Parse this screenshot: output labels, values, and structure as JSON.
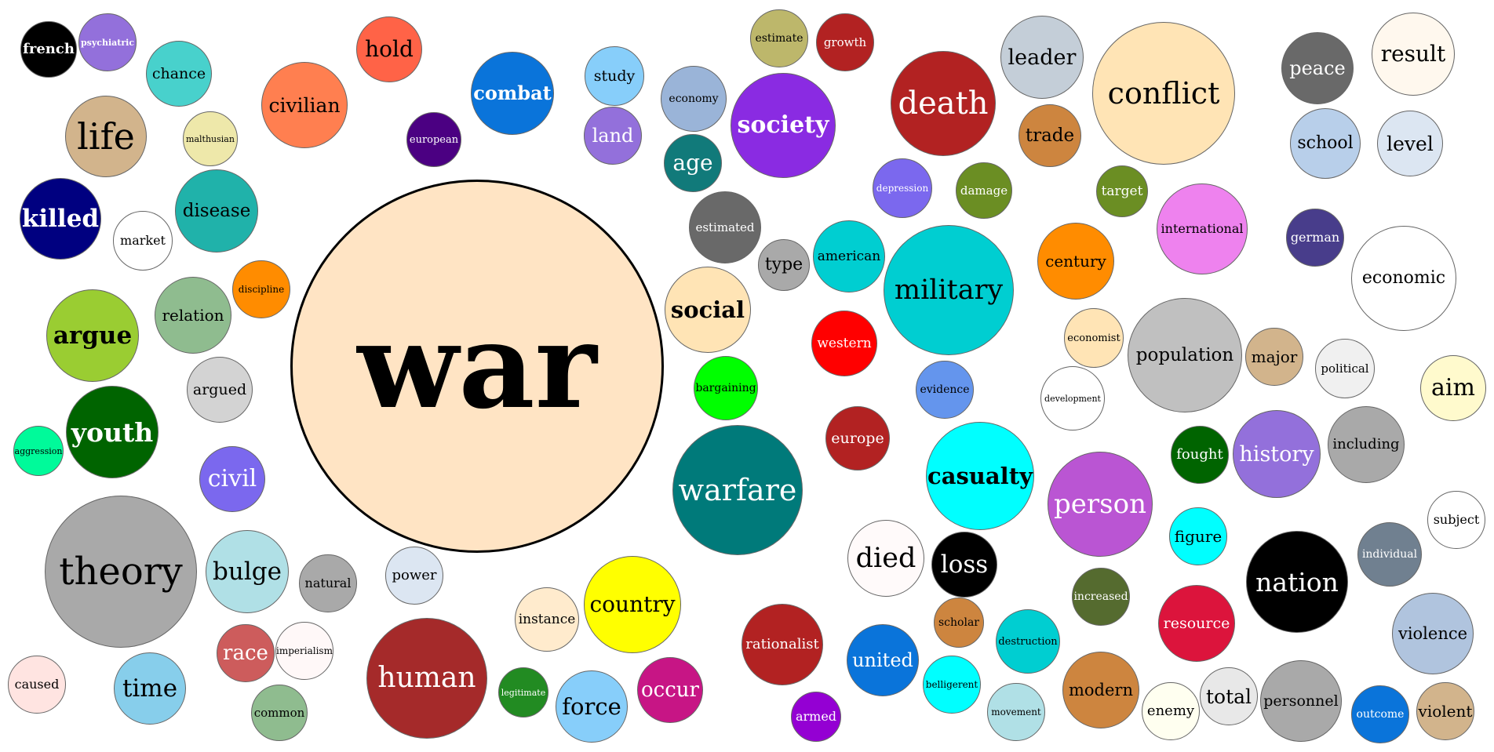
{
  "words": [
    {
      "text": "war",
      "color": "#FFE4C4",
      "textColor": "#000000"
    },
    {
      "text": "french",
      "color": "#000000",
      "textColor": "#ffffff"
    },
    {
      "text": "psychiatric",
      "color": "#9370DB",
      "textColor": "#ffffff"
    },
    {
      "text": "chance",
      "color": "#48D1CC",
      "textColor": "#000000"
    },
    {
      "text": "hold",
      "color": "#FF6347",
      "textColor": "#000000"
    },
    {
      "text": "civilian",
      "color": "#FF7F50",
      "textColor": "#000000"
    },
    {
      "text": "combat",
      "color": "#0A74DA",
      "textColor": "#ffffff"
    },
    {
      "text": "study",
      "color": "#87CEFA",
      "textColor": "#000000"
    },
    {
      "text": "estimate",
      "color": "#BDB76B",
      "textColor": "#000000"
    },
    {
      "text": "growth",
      "color": "#B22222",
      "textColor": "#ffffff"
    },
    {
      "text": "economy",
      "color": "#9AB4D8",
      "textColor": "#000000"
    },
    {
      "text": "land",
      "color": "#9370DB",
      "textColor": "#ffffff"
    },
    {
      "text": "society",
      "color": "#8A2BE2",
      "textColor": "#ffffff"
    },
    {
      "text": "death",
      "color": "#B22222",
      "textColor": "#ffffff"
    },
    {
      "text": "leader",
      "color": "#C4CED8",
      "textColor": "#000000"
    },
    {
      "text": "conflict",
      "color": "#FFE4B5",
      "textColor": "#000000"
    },
    {
      "text": "peace",
      "color": "#696969",
      "textColor": "#ffffff"
    },
    {
      "text": "result",
      "color": "#FFF8EE",
      "textColor": "#000000"
    },
    {
      "text": "life",
      "color": "#D2B48C",
      "textColor": "#000000"
    },
    {
      "text": "malthusian",
      "color": "#EEE8AA",
      "textColor": "#000000"
    },
    {
      "text": "european",
      "color": "#4B0082",
      "textColor": "#ffffff"
    },
    {
      "text": "age",
      "color": "#117A7A",
      "textColor": "#ffffff"
    },
    {
      "text": "trade",
      "color": "#CD853F",
      "textColor": "#000000"
    },
    {
      "text": "school",
      "color": "#B8CFEA",
      "textColor": "#000000"
    },
    {
      "text": "level",
      "color": "#DCE6F2",
      "textColor": "#000000"
    },
    {
      "text": "killed",
      "color": "#000080",
      "textColor": "#ffffff"
    },
    {
      "text": "disease",
      "color": "#20B2AA",
      "textColor": "#000000"
    },
    {
      "text": "market",
      "color": "#FFFFFF",
      "textColor": "#000000"
    },
    {
      "text": "estimated",
      "color": "#696969",
      "textColor": "#ffffff"
    },
    {
      "text": "depression",
      "color": "#7B68EE",
      "textColor": "#ffffff"
    },
    {
      "text": "damage",
      "color": "#6B8E23",
      "textColor": "#ffffff"
    },
    {
      "text": "target",
      "color": "#6B8E23",
      "textColor": "#ffffff"
    },
    {
      "text": "international",
      "color": "#EE82EE",
      "textColor": "#000000"
    },
    {
      "text": "german",
      "color": "#483D8B",
      "textColor": "#ffffff"
    },
    {
      "text": "economic",
      "color": "#FFFFFF",
      "textColor": "#000000"
    },
    {
      "text": "type",
      "color": "#A9A9A9",
      "textColor": "#000000"
    },
    {
      "text": "american",
      "color": "#00CED1",
      "textColor": "#000000"
    },
    {
      "text": "military",
      "color": "#00CED1",
      "textColor": "#000000"
    },
    {
      "text": "century",
      "color": "#FF8C00",
      "textColor": "#000000"
    },
    {
      "text": "argue",
      "color": "#9ACD32",
      "textColor": "#000000"
    },
    {
      "text": "relation",
      "color": "#8FBC8F",
      "textColor": "#000000"
    },
    {
      "text": "discipline",
      "color": "#FF8C00",
      "textColor": "#000000"
    },
    {
      "text": "social",
      "color": "#FFE4B5",
      "textColor": "#000000"
    },
    {
      "text": "western",
      "color": "#FF0000",
      "textColor": "#ffffff"
    },
    {
      "text": "economist",
      "color": "#FFE4B5",
      "textColor": "#000000"
    },
    {
      "text": "population",
      "color": "#C0C0C0",
      "textColor": "#000000"
    },
    {
      "text": "major",
      "color": "#D2B48C",
      "textColor": "#000000"
    },
    {
      "text": "political",
      "color": "#F0F0F0",
      "textColor": "#000000"
    },
    {
      "text": "aim",
      "color": "#FFFACD",
      "textColor": "#000000"
    },
    {
      "text": "argued",
      "color": "#D3D3D3",
      "textColor": "#000000"
    },
    {
      "text": "bargaining",
      "color": "#00FF00",
      "textColor": "#000000"
    },
    {
      "text": "evidence",
      "color": "#6495ED",
      "textColor": "#000000"
    },
    {
      "text": "development",
      "color": "#FFFFFF",
      "textColor": "#000000"
    },
    {
      "text": "aggression",
      "color": "#00FA9A",
      "textColor": "#000000"
    },
    {
      "text": "youth",
      "color": "#006400",
      "textColor": "#ffffff"
    },
    {
      "text": "europe",
      "color": "#B22222",
      "textColor": "#ffffff"
    },
    {
      "text": "casualty",
      "color": "#00FFFF",
      "textColor": "#000000"
    },
    {
      "text": "fought",
      "color": "#006400",
      "textColor": "#ffffff"
    },
    {
      "text": "history",
      "color": "#9370DB",
      "textColor": "#ffffff"
    },
    {
      "text": "including",
      "color": "#A9A9A9",
      "textColor": "#000000"
    },
    {
      "text": "civil",
      "color": "#7B68EE",
      "textColor": "#ffffff"
    },
    {
      "text": "warfare",
      "color": "#007A7A",
      "textColor": "#ffffff"
    },
    {
      "text": "person",
      "color": "#BA55D3",
      "textColor": "#ffffff"
    },
    {
      "text": "subject",
      "color": "#FFFFFF",
      "textColor": "#000000"
    },
    {
      "text": "theory",
      "color": "#A9A9A9",
      "textColor": "#000000"
    },
    {
      "text": "bulge",
      "color": "#B0E0E6",
      "textColor": "#000000"
    },
    {
      "text": "natural",
      "color": "#A9A9A9",
      "textColor": "#000000"
    },
    {
      "text": "power",
      "color": "#DCE6F2",
      "textColor": "#000000"
    },
    {
      "text": "country",
      "color": "#FFFF00",
      "textColor": "#000000"
    },
    {
      "text": "died",
      "color": "#FFFAFA",
      "textColor": "#000000"
    },
    {
      "text": "loss",
      "color": "#000000",
      "textColor": "#ffffff"
    },
    {
      "text": "figure",
      "color": "#00FFFF",
      "textColor": "#000000"
    },
    {
      "text": "nation",
      "color": "#000000",
      "textColor": "#ffffff"
    },
    {
      "text": "individual",
      "color": "#708090",
      "textColor": "#ffffff"
    },
    {
      "text": "instance",
      "color": "#FFEBCD",
      "textColor": "#000000"
    },
    {
      "text": "increased",
      "color": "#556B2F",
      "textColor": "#ffffff"
    },
    {
      "text": "resource",
      "color": "#DC143C",
      "textColor": "#ffffff"
    },
    {
      "text": "violence",
      "color": "#B0C4DE",
      "textColor": "#000000"
    },
    {
      "text": "race",
      "color": "#CD5C5C",
      "textColor": "#ffffff"
    },
    {
      "text": "imperialism",
      "color": "#FFF8F8",
      "textColor": "#000000"
    },
    {
      "text": "rationalist",
      "color": "#B22222",
      "textColor": "#ffffff"
    },
    {
      "text": "scholar",
      "color": "#CD853F",
      "textColor": "#000000"
    },
    {
      "text": "destruction",
      "color": "#00CED1",
      "textColor": "#000000"
    },
    {
      "text": "united",
      "color": "#0A74DA",
      "textColor": "#ffffff"
    },
    {
      "text": "human",
      "color": "#A52A2A",
      "textColor": "#ffffff"
    },
    {
      "text": "occur",
      "color": "#C71585",
      "textColor": "#ffffff"
    },
    {
      "text": "caused",
      "color": "#FFE4E1",
      "textColor": "#000000"
    },
    {
      "text": "time",
      "color": "#87CEEB",
      "textColor": "#000000"
    },
    {
      "text": "common",
      "color": "#8FBC8F",
      "textColor": "#000000"
    },
    {
      "text": "legitimate",
      "color": "#228B22",
      "textColor": "#ffffff"
    },
    {
      "text": "force",
      "color": "#87CEFA",
      "textColor": "#000000"
    },
    {
      "text": "armed",
      "color": "#9400D3",
      "textColor": "#ffffff"
    },
    {
      "text": "belligerent",
      "color": "#00FFFF",
      "textColor": "#000000"
    },
    {
      "text": "movement",
      "color": "#B0E0E6",
      "textColor": "#000000"
    },
    {
      "text": "modern",
      "color": "#CD853F",
      "textColor": "#000000"
    },
    {
      "text": "enemy",
      "color": "#FFFFF0",
      "textColor": "#000000"
    },
    {
      "text": "total",
      "color": "#E8E8E8",
      "textColor": "#000000"
    },
    {
      "text": "personnel",
      "color": "#A9A9A9",
      "textColor": "#000000"
    },
    {
      "text": "outcome",
      "color": "#0A74DA",
      "textColor": "#ffffff"
    },
    {
      "text": "violent",
      "color": "#D2B48C",
      "textColor": "#000000"
    }
  ]
}
